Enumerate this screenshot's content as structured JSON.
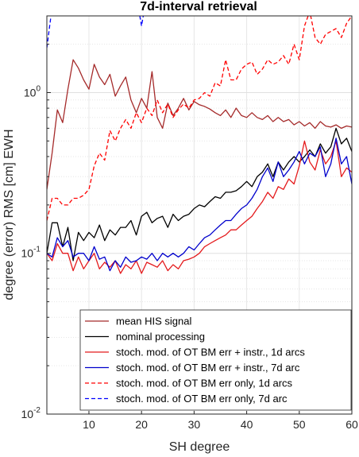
{
  "chart_data": {
    "type": "line",
    "title": "7d-interval retrieval",
    "xlabel": "SH degree",
    "ylabel": "degree (error) RMS [cm] EWH",
    "xlim": [
      2,
      60
    ],
    "ylim": [
      0.01,
      3
    ],
    "yscale": "log",
    "grid": "on",
    "legend_position": "bottom",
    "x_ticks": [
      10,
      20,
      30,
      40,
      50,
      60
    ],
    "y_ticks": [
      {
        "value": 0.01,
        "base": "10",
        "exp": "-2"
      },
      {
        "value": 0.1,
        "base": "10",
        "exp": "-1"
      },
      {
        "value": 1,
        "base": "10",
        "exp": "0"
      }
    ],
    "series": [
      {
        "name": "mean HIS signal",
        "color": "#a52a2a",
        "style": "solid",
        "x": [
          2,
          3,
          4,
          5,
          6,
          7,
          8,
          9,
          10,
          11,
          12,
          13,
          14,
          15,
          16,
          17,
          18,
          19,
          20,
          21,
          22,
          23,
          24,
          25,
          26,
          27,
          28,
          29,
          30,
          31,
          32,
          33,
          34,
          35,
          36,
          37,
          38,
          39,
          40,
          41,
          42,
          43,
          44,
          45,
          46,
          47,
          48,
          49,
          50,
          51,
          52,
          53,
          54,
          55,
          56,
          57,
          58,
          59,
          60
        ],
        "values": [
          0.25,
          0.42,
          0.78,
          0.65,
          1.05,
          1.6,
          1.42,
          1.2,
          1.05,
          1.5,
          1.25,
          1.12,
          1.3,
          0.95,
          1.1,
          1.25,
          0.9,
          0.75,
          0.92,
          0.8,
          1.35,
          0.7,
          0.6,
          0.86,
          0.72,
          0.8,
          0.92,
          0.78,
          0.88,
          0.84,
          0.82,
          0.79,
          0.75,
          0.72,
          0.78,
          0.7,
          0.8,
          0.72,
          0.7,
          0.75,
          0.7,
          0.68,
          0.72,
          0.66,
          0.7,
          0.66,
          0.68,
          0.63,
          0.66,
          0.62,
          0.65,
          0.6,
          0.66,
          0.62,
          0.61,
          0.63,
          0.6,
          0.62,
          0.61
        ]
      },
      {
        "name": "nominal processing",
        "color": "#000000",
        "style": "solid",
        "x": [
          2,
          3,
          4,
          5,
          6,
          7,
          8,
          9,
          10,
          11,
          12,
          13,
          14,
          15,
          16,
          17,
          18,
          19,
          20,
          21,
          22,
          23,
          24,
          25,
          26,
          27,
          28,
          29,
          30,
          31,
          32,
          33,
          34,
          35,
          36,
          37,
          38,
          39,
          40,
          41,
          42,
          43,
          44,
          45,
          46,
          47,
          48,
          49,
          50,
          51,
          52,
          53,
          54,
          55,
          56,
          57,
          58,
          59,
          60
        ],
        "values": [
          0.1,
          0.155,
          0.155,
          0.11,
          0.145,
          0.09,
          0.135,
          0.12,
          0.135,
          0.125,
          0.15,
          0.12,
          0.14,
          0.13,
          0.145,
          0.145,
          0.16,
          0.13,
          0.17,
          0.18,
          0.155,
          0.165,
          0.17,
          0.145,
          0.175,
          0.16,
          0.17,
          0.175,
          0.19,
          0.2,
          0.195,
          0.21,
          0.225,
          0.22,
          0.24,
          0.24,
          0.245,
          0.26,
          0.28,
          0.26,
          0.3,
          0.32,
          0.36,
          0.3,
          0.37,
          0.33,
          0.37,
          0.4,
          0.37,
          0.4,
          0.44,
          0.4,
          0.48,
          0.42,
          0.46,
          0.6,
          0.48,
          0.52,
          0.43
        ]
      },
      {
        "name": "stoch. mod. of OT BM err + instr., 1d arcs",
        "color": "#e41a1c",
        "style": "solid",
        "x": [
          2,
          3,
          4,
          5,
          6,
          7,
          8,
          9,
          10,
          11,
          12,
          13,
          14,
          15,
          16,
          17,
          18,
          19,
          20,
          21,
          22,
          23,
          24,
          25,
          26,
          27,
          28,
          29,
          30,
          31,
          32,
          33,
          34,
          35,
          36,
          37,
          38,
          39,
          40,
          41,
          42,
          43,
          44,
          45,
          46,
          47,
          48,
          49,
          50,
          51,
          52,
          53,
          54,
          55,
          56,
          57,
          58,
          59,
          60
        ],
        "values": [
          0.1,
          0.09,
          0.115,
          0.1,
          0.1,
          0.078,
          0.095,
          0.08,
          0.09,
          0.1,
          0.08,
          0.088,
          0.082,
          0.09,
          0.075,
          0.085,
          0.08,
          0.09,
          0.075,
          0.088,
          0.085,
          0.082,
          0.09,
          0.078,
          0.085,
          0.08,
          0.09,
          0.092,
          0.095,
          0.1,
          0.11,
          0.115,
          0.12,
          0.125,
          0.13,
          0.14,
          0.14,
          0.15,
          0.16,
          0.17,
          0.19,
          0.21,
          0.24,
          0.22,
          0.26,
          0.25,
          0.29,
          0.27,
          0.35,
          0.5,
          0.37,
          0.33,
          0.44,
          0.36,
          0.4,
          0.5,
          0.3,
          0.34,
          0.32
        ]
      },
      {
        "name": "stoch. mod. of OT BM err + instr., 7d arc",
        "color": "#0000cc",
        "style": "solid",
        "x": [
          2,
          3,
          4,
          5,
          6,
          7,
          8,
          9,
          10,
          11,
          12,
          13,
          14,
          15,
          16,
          17,
          18,
          19,
          20,
          21,
          22,
          23,
          24,
          25,
          26,
          27,
          28,
          29,
          30,
          31,
          32,
          33,
          34,
          35,
          36,
          37,
          38,
          39,
          40,
          41,
          42,
          43,
          44,
          45,
          46,
          47,
          48,
          49,
          50,
          51,
          52,
          53,
          54,
          55,
          56,
          57,
          58,
          59,
          60
        ],
        "values": [
          0.1,
          0.095,
          0.125,
          0.11,
          0.12,
          0.095,
          0.1,
          0.1,
          0.09,
          0.11,
          0.092,
          0.095,
          0.078,
          0.09,
          0.082,
          0.095,
          0.088,
          0.09,
          0.095,
          0.092,
          0.1,
          0.09,
          0.1,
          0.095,
          0.1,
          0.095,
          0.1,
          0.11,
          0.105,
          0.115,
          0.125,
          0.13,
          0.14,
          0.15,
          0.16,
          0.16,
          0.175,
          0.19,
          0.2,
          0.22,
          0.25,
          0.3,
          0.34,
          0.28,
          0.37,
          0.3,
          0.33,
          0.37,
          0.43,
          0.36,
          0.42,
          0.4,
          0.46,
          0.3,
          0.36,
          0.52,
          0.36,
          0.4,
          0.27
        ]
      },
      {
        "name": "stoch. mod. of OT BM err only, 1d arcs",
        "color": "#ff0000",
        "style": "dashed",
        "x": [
          2,
          3,
          4,
          5,
          6,
          7,
          8,
          9,
          10,
          11,
          12,
          13,
          14,
          15,
          16,
          17,
          18,
          19,
          20,
          21,
          22,
          23,
          24,
          25,
          26,
          27,
          28,
          29,
          30,
          31,
          32,
          33,
          34,
          35,
          36,
          37,
          38,
          39,
          40,
          41,
          42,
          43,
          44,
          45,
          46,
          47,
          48,
          49,
          50,
          51,
          52,
          53,
          54,
          55,
          56,
          57,
          58,
          59,
          60
        ],
        "values": [
          0.16,
          0.22,
          0.22,
          0.2,
          0.2,
          0.22,
          0.22,
          0.23,
          0.25,
          0.35,
          0.42,
          0.38,
          0.58,
          0.5,
          0.6,
          0.68,
          0.6,
          0.75,
          0.65,
          0.8,
          0.72,
          0.9,
          0.75,
          0.85,
          0.7,
          0.78,
          0.85,
          0.8,
          0.9,
          0.92,
          1.0,
          0.95,
          1.15,
          1.1,
          1.6,
          1.2,
          1.2,
          1.4,
          1.5,
          1.55,
          1.3,
          1.4,
          1.6,
          1.5,
          1.55,
          1.7,
          1.5,
          2.0,
          1.6,
          2.6,
          3.2,
          2.2,
          2.0,
          2.3,
          2.4,
          2.5,
          2.2,
          2.7,
          3.0
        ]
      },
      {
        "name": "stoch. mod. of OT BM err only, 7d arc",
        "color": "#0000ff",
        "style": "dashed",
        "x": [
          2,
          3,
          4,
          5,
          6,
          7,
          8,
          9,
          10,
          11,
          12,
          13,
          14,
          15,
          16,
          17,
          18,
          19,
          20,
          21,
          22,
          23,
          24,
          25,
          26,
          27,
          28,
          29,
          30,
          31,
          32,
          33,
          34,
          35,
          36,
          37,
          38,
          39,
          40,
          41,
          42,
          43,
          44,
          45,
          46,
          47,
          48,
          49,
          50,
          51,
          52,
          53,
          54,
          55,
          56,
          57,
          58,
          59,
          60
        ],
        "values": [
          1.9,
          3.4,
          4,
          4,
          4,
          4,
          4,
          4,
          4,
          4,
          4,
          4,
          4,
          4,
          4,
          4,
          4,
          4,
          2.6,
          4,
          4,
          4,
          4,
          4,
          4,
          4,
          4,
          4,
          4,
          4,
          4,
          4,
          4,
          4,
          4,
          4,
          4,
          4,
          4,
          4,
          4,
          4,
          4,
          4,
          4,
          4,
          4,
          4,
          4,
          4,
          4,
          4,
          4,
          4,
          4,
          4,
          4,
          4,
          4
        ]
      }
    ]
  }
}
